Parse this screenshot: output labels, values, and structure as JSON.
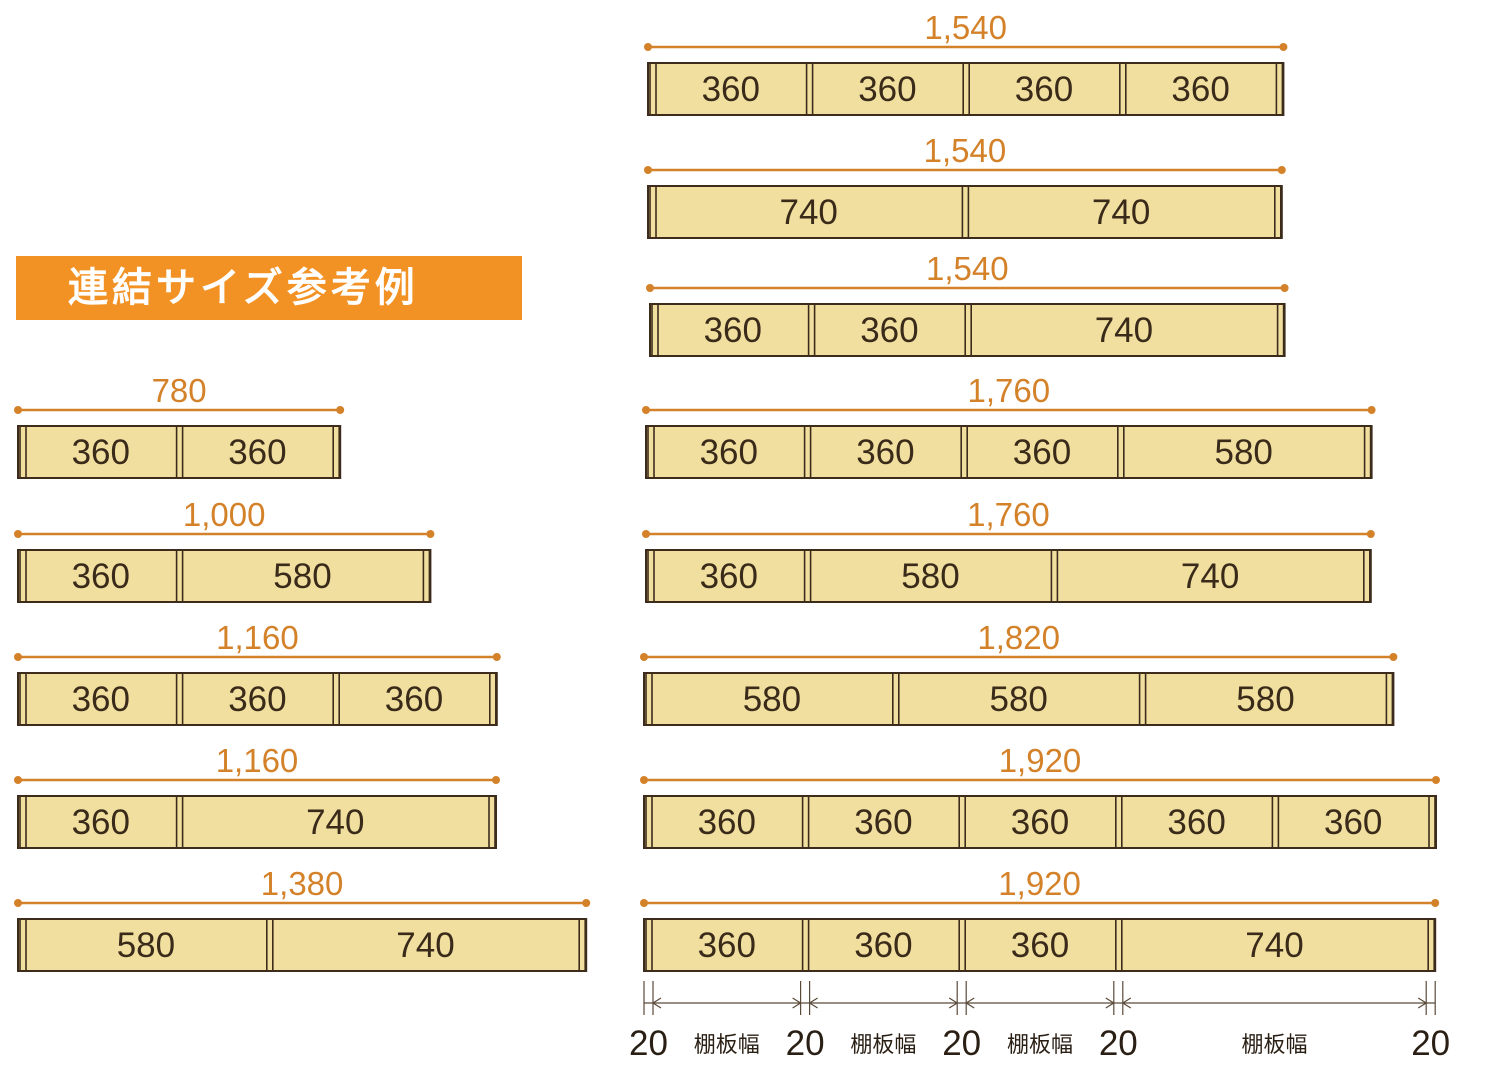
{
  "title": "連結サイズ参考例",
  "colors": {
    "accent": "#f39224",
    "dimension": "#d4822a",
    "board_fill": "#f0df9e",
    "board_stroke": "#3d2c1c",
    "text": "#3a2a1a"
  },
  "configurations_left": [
    {
      "total": "780",
      "segments": [
        "360",
        "360"
      ]
    },
    {
      "total": "1,000",
      "segments": [
        "360",
        "580"
      ]
    },
    {
      "total": "1,160",
      "segments": [
        "360",
        "360",
        "360"
      ]
    },
    {
      "total": "1,160",
      "segments": [
        "360",
        "740"
      ]
    },
    {
      "total": "1,380",
      "segments": [
        "580",
        "740"
      ]
    }
  ],
  "configurations_right": [
    {
      "total": "1,540",
      "segments": [
        "360",
        "360",
        "360",
        "360"
      ]
    },
    {
      "total": "1,540",
      "segments": [
        "740",
        "740"
      ]
    },
    {
      "total": "1,540",
      "segments": [
        "360",
        "360",
        "740"
      ]
    },
    {
      "total": "1,760",
      "segments": [
        "360",
        "360",
        "360",
        "580"
      ]
    },
    {
      "total": "1,760",
      "segments": [
        "360",
        "580",
        "740"
      ]
    },
    {
      "total": "1,820",
      "segments": [
        "580",
        "580",
        "580"
      ]
    },
    {
      "total": "1,920",
      "segments": [
        "360",
        "360",
        "360",
        "360",
        "360"
      ]
    },
    {
      "total": "1,920",
      "segments": [
        "360",
        "360",
        "360",
        "740"
      ]
    }
  ],
  "legend": {
    "post_width": "20",
    "shelf_label": "棚板幅",
    "post_labels": [
      "20",
      "20",
      "20",
      "20",
      "20"
    ],
    "shelf_labels": [
      "棚板幅",
      "棚板幅",
      "棚板幅",
      "棚板幅"
    ]
  }
}
